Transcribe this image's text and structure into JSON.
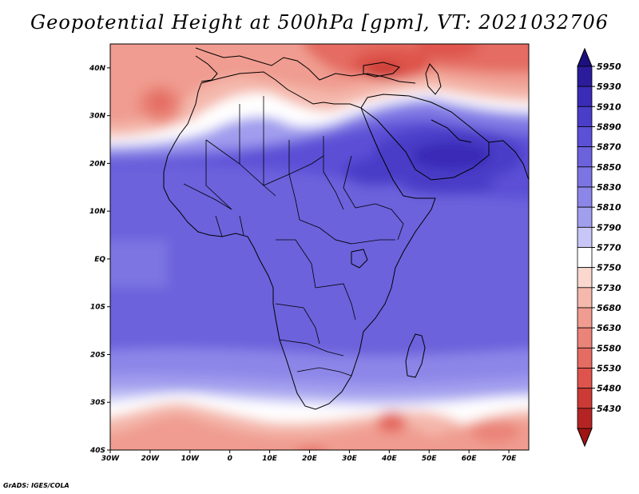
{
  "title": "Geopotential Height at 500hPa [gpm], VT: 2021032706",
  "credit": "GrADS: IGES/COLA",
  "map": {
    "lat_labels": [
      "40N",
      "30N",
      "20N",
      "10N",
      "EQ",
      "10S",
      "20S",
      "30S",
      "40S"
    ],
    "lon_labels": [
      "30W",
      "20W",
      "10W",
      "0",
      "10E",
      "20E",
      "30E",
      "40E",
      "50E",
      "60E",
      "70E"
    ],
    "lat_range": [
      -40,
      45
    ],
    "lon_range": [
      -30,
      75
    ]
  },
  "colorbar": {
    "levels": [
      "5950",
      "5930",
      "5910",
      "5890",
      "5870",
      "5850",
      "5830",
      "5810",
      "5790",
      "5770",
      "5750",
      "5730",
      "5680",
      "5630",
      "5580",
      "5530",
      "5480",
      "5430"
    ],
    "colors": [
      "#2a1c9a",
      "#3a2cb6",
      "#4a3ec8",
      "#5c50d6",
      "#6c62dc",
      "#7c74e2",
      "#8c86e8",
      "#a29eee",
      "#c8c6f6",
      "#ffffff",
      "#fad8d0",
      "#f4b8ac",
      "#f09c90",
      "#ea8478",
      "#e46c62",
      "#de544c",
      "#cc3a36",
      "#b42424"
    ]
  },
  "chart_data": {
    "type": "heatmap",
    "title": "Geopotential Height at 500hPa [gpm], VT: 2021032706",
    "variable": "Geopotential Height at 500hPa",
    "units": "gpm",
    "valid_time": "2021032706",
    "contour_levels": [
      5430,
      5480,
      5530,
      5580,
      5630,
      5680,
      5730,
      5750,
      5770,
      5790,
      5810,
      5830,
      5850,
      5870,
      5890,
      5910,
      5930,
      5950
    ]
  }
}
